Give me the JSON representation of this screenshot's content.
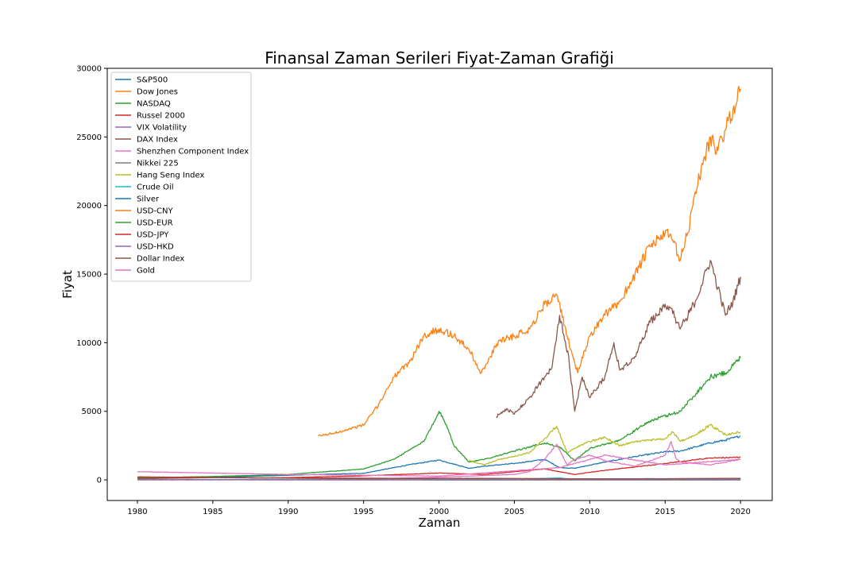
{
  "chart_data": {
    "type": "line",
    "title": "Finansal Zaman Serileri Fiyat-Zaman Grafiği",
    "xlabel": "Zaman",
    "ylabel": "Fiyat",
    "xlim": [
      1978.0,
      2022.1
    ],
    "ylim": [
      -1500,
      30000
    ],
    "x_ticks": [
      1980,
      1985,
      1990,
      1995,
      2000,
      2005,
      2010,
      2015,
      2020
    ],
    "y_ticks": [
      0,
      5000,
      10000,
      15000,
      20000,
      25000,
      30000
    ],
    "grid": false,
    "legend_position": "upper-left",
    "series": [
      {
        "name": "S&P500",
        "color": "#1f77b4",
        "x": [
          1980,
          1985,
          1990,
          1995,
          1998,
          2000,
          2002,
          2003,
          2005,
          2007,
          2008,
          2009,
          2011,
          2013,
          2015,
          2016,
          2018,
          2019,
          2020
        ],
        "y": [
          110,
          180,
          340,
          480,
          1100,
          1450,
          850,
          1000,
          1200,
          1500,
          900,
          850,
          1300,
          1700,
          2050,
          2100,
          2700,
          2900,
          3200
        ]
      },
      {
        "name": "Dow Jones",
        "color": "#ff7f0e",
        "x": [
          1992,
          1993,
          1994,
          1995,
          1996,
          1997,
          1998,
          1999,
          2000,
          2001,
          2002,
          2002.8,
          2003.2,
          2004,
          2005,
          2006,
          2007,
          2007.8,
          2008.5,
          2009.2,
          2010,
          2011,
          2012,
          2013,
          2014,
          2015,
          2015.5,
          2016,
          2016.5,
          2017,
          2018,
          2018.5,
          2019,
          2019.5,
          2020
        ],
        "y": [
          3200,
          3400,
          3700,
          4000,
          5500,
          7500,
          8500,
          10500,
          11000,
          10500,
          9500,
          7800,
          8500,
          10200,
          10500,
          11000,
          12800,
          13500,
          10500,
          7800,
          10500,
          12000,
          13000,
          15000,
          17000,
          18000,
          17500,
          16000,
          18000,
          21000,
          25000,
          24000,
          25500,
          27000,
          28500
        ]
      },
      {
        "name": "NASDAQ",
        "color": "#2ca02c",
        "x": [
          1980,
          1985,
          1990,
          1995,
          1997,
          1999,
          2000,
          2000.5,
          2001,
          2002,
          2003,
          2005,
          2007,
          2008,
          2009,
          2010,
          2012,
          2014,
          2016,
          2018,
          2019,
          2020
        ],
        "y": [
          150,
          250,
          400,
          800,
          1500,
          2800,
          5000,
          4000,
          2500,
          1300,
          1500,
          2100,
          2700,
          2400,
          1400,
          2300,
          2900,
          4300,
          5000,
          7500,
          7800,
          8900
        ]
      },
      {
        "name": "Russel 2000",
        "color": "#d62728",
        "x": [
          1987.5,
          1990,
          1995,
          2000,
          2003,
          2007,
          2009,
          2011,
          2015,
          2018,
          2020
        ],
        "y": [
          130,
          170,
          300,
          500,
          400,
          800,
          400,
          700,
          1200,
          1600,
          1650
        ]
      },
      {
        "name": "VIX Volatility",
        "color": "#9467bd",
        "x": [
          1990,
          1995,
          2000,
          2005,
          2008,
          2010,
          2015,
          2020
        ],
        "y": [
          20,
          15,
          25,
          13,
          60,
          25,
          15,
          14
        ]
      },
      {
        "name": "DAX Index",
        "color": "#8c564b",
        "x": [
          2003.8,
          2004.5,
          2005,
          2006,
          2007,
          2007.5,
          2008,
          2008.6,
          2009,
          2009.5,
          2010,
          2011,
          2011.6,
          2012,
          2013,
          2014,
          2015,
          2015.4,
          2016,
          2017,
          2018,
          2018.5,
          2019,
          2019.5,
          2020
        ],
        "y": [
          4600,
          5200,
          4800,
          6000,
          7500,
          8200,
          12000,
          9000,
          5000,
          7500,
          6000,
          7500,
          10000,
          8000,
          9000,
          11500,
          12800,
          12500,
          11000,
          13000,
          16000,
          14000,
          12000,
          13000,
          14800
        ]
      },
      {
        "name": "Shenzhen Component Index",
        "color": "#e377c2",
        "x": [
          1996.5,
          2000,
          2005,
          2006,
          2007,
          2007.8,
          2008.5,
          2009,
          2010,
          2011,
          2013,
          2015,
          2015.4,
          2015.7,
          2016,
          2018,
          2019,
          2020
        ],
        "y": [
          100,
          200,
          400,
          600,
          1500,
          2600,
          1100,
          1500,
          1800,
          1400,
          1000,
          1800,
          2800,
          1600,
          1300,
          1100,
          1300,
          1500
        ]
      },
      {
        "name": "Nikkei 225",
        "color": "#7f7f7f",
        "x": [
          1996.5,
          2000,
          2003,
          2007,
          2009,
          2013,
          2015,
          2018,
          2020
        ],
        "y": [
          50,
          60,
          30,
          70,
          30,
          50,
          80,
          90,
          100
        ]
      },
      {
        "name": "Hang Seng Index",
        "color": "#bcbd22",
        "x": [
          2002,
          2003,
          2004,
          2005,
          2006,
          2007,
          2007.8,
          2008.5,
          2009,
          2010,
          2011,
          2012,
          2013,
          2015,
          2015.5,
          2016,
          2017,
          2018,
          2019,
          2020
        ],
        "y": [
          1400,
          1100,
          1500,
          1700,
          2000,
          3000,
          3900,
          2000,
          2300,
          2800,
          3100,
          2500,
          2800,
          3000,
          3500,
          2800,
          3300,
          4000,
          3300,
          3500
        ]
      },
      {
        "name": "Crude Oil",
        "color": "#17becf",
        "x": [
          1983,
          1990,
          1999,
          2005,
          2008,
          2009,
          2014,
          2016,
          2020
        ],
        "y": [
          30,
          25,
          12,
          60,
          140,
          40,
          100,
          30,
          60
        ]
      },
      {
        "name": "Silver",
        "color": "#1f77b4",
        "x": [
          1980,
          1990,
          2000,
          2006,
          2011,
          2015,
          2020
        ],
        "y": [
          20,
          5,
          5,
          12,
          45,
          15,
          17
        ]
      },
      {
        "name": "USD-CNY",
        "color": "#ff7f0e",
        "x": [
          1980,
          1994,
          2005,
          2014,
          2020
        ],
        "y": [
          2,
          8,
          8,
          6,
          7
        ]
      },
      {
        "name": "USD-EUR",
        "color": "#2ca02c",
        "x": [
          1999,
          2008,
          2020
        ],
        "y": [
          1,
          1,
          1
        ]
      },
      {
        "name": "USD-JPY",
        "color": "#d62728",
        "x": [
          1980,
          1990,
          2000,
          2012,
          2020
        ],
        "y": [
          220,
          140,
          110,
          80,
          110
        ]
      },
      {
        "name": "USD-HKD",
        "color": "#9467bd",
        "x": [
          1980,
          2020
        ],
        "y": [
          8,
          8
        ]
      },
      {
        "name": "Dollar Index",
        "color": "#8c564b",
        "x": [
          1980,
          1985,
          1995,
          2002,
          2008,
          2020
        ],
        "y": [
          90,
          160,
          85,
          120,
          75,
          97
        ]
      },
      {
        "name": "Gold",
        "color": "#e377c2",
        "x": [
          1980,
          1990,
          2000,
          2008,
          2011,
          2015,
          2020
        ],
        "y": [
          600,
          400,
          280,
          900,
          1800,
          1100,
          1500
        ]
      }
    ]
  }
}
